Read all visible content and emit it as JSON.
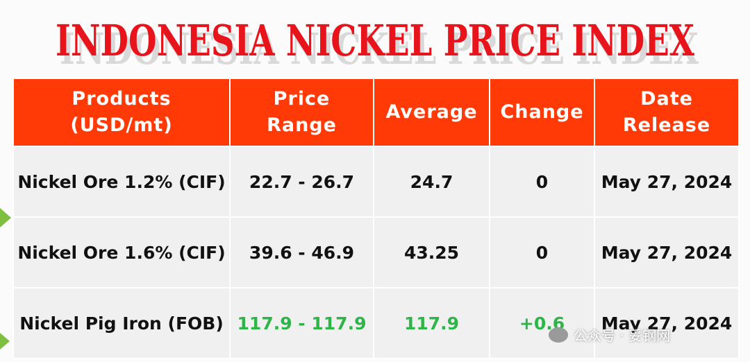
{
  "header": {
    "title": "INDONESIA NICKEL PRICE INDEX"
  },
  "table": {
    "columns": [
      [
        "Products",
        "(USD/mt)"
      ],
      [
        "Price",
        "Range"
      ],
      [
        "Average"
      ],
      [
        "Change"
      ],
      [
        "Date",
        "Release"
      ]
    ],
    "rows": [
      [
        "Nickel Ore 1.2% (CIF)",
        "22.7 - 26.7",
        "24.7",
        "0",
        "May 27, 2024"
      ],
      [
        "Nickel Ore 1.6% (CIF)",
        "39.6 - 46.9",
        "43.25",
        "0",
        "May 27, 2024"
      ],
      [
        "Nickel Pig Iron (FOB)",
        "117.9 - 117.9",
        "117.9",
        "+0.6",
        "May 27, 2024"
      ]
    ]
  },
  "watermark": "公众号 · 妥钢网"
}
